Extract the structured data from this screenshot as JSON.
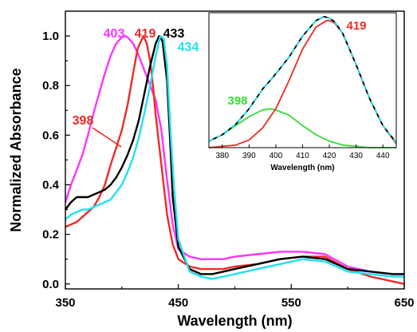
{
  "chart_data": [
    {
      "type": "line",
      "xlabel": "Wavelength (nm)",
      "ylabel": "Normalized Absorbance",
      "xlim": [
        350,
        650
      ],
      "ylim": [
        -0.02,
        1.1
      ],
      "xticks": [
        "350",
        "450",
        "550",
        "650"
      ],
      "xtick_values": [
        350,
        450,
        550,
        650
      ],
      "yticks": [
        "0.0",
        "0.2",
        "0.4",
        "0.6",
        "0.8",
        "1.0"
      ],
      "ytick_values": [
        0,
        0.2,
        0.4,
        0.6,
        0.8,
        1.0
      ],
      "series": [
        {
          "color": "#ff33ff",
          "x": [
            350,
            355,
            360,
            365,
            370,
            375,
            380,
            385,
            390,
            395,
            400,
            403,
            405,
            410,
            415,
            420,
            425,
            430,
            435,
            440,
            445,
            450,
            460,
            470,
            480,
            490,
            500,
            520,
            540,
            560,
            580,
            600,
            620,
            640,
            650
          ],
          "y": [
            0.33,
            0.4,
            0.46,
            0.52,
            0.6,
            0.69,
            0.77,
            0.85,
            0.92,
            0.97,
            0.995,
            1.0,
            0.995,
            0.97,
            0.92,
            0.86,
            0.8,
            0.74,
            0.62,
            0.42,
            0.24,
            0.14,
            0.11,
            0.1,
            0.1,
            0.1,
            0.11,
            0.12,
            0.13,
            0.13,
            0.12,
            0.07,
            0.05,
            0.04,
            0.04
          ]
        },
        {
          "color": "#ee2a24",
          "x": [
            350,
            355,
            360,
            365,
            370,
            375,
            380,
            385,
            390,
            395,
            400,
            405,
            410,
            414,
            419,
            422,
            425,
            428,
            430,
            435,
            440,
            445,
            450,
            460,
            470,
            480,
            490,
            500,
            520,
            540,
            560,
            580,
            600,
            620,
            640,
            650
          ],
          "y": [
            0.23,
            0.24,
            0.25,
            0.27,
            0.29,
            0.31,
            0.35,
            0.4,
            0.48,
            0.55,
            0.62,
            0.72,
            0.85,
            0.95,
            1.0,
            0.97,
            0.9,
            0.78,
            0.68,
            0.48,
            0.28,
            0.16,
            0.1,
            0.07,
            0.06,
            0.06,
            0.06,
            0.07,
            0.08,
            0.1,
            0.11,
            0.11,
            0.06,
            0.03,
            0.01,
            0.0
          ]
        },
        {
          "color": "#000000",
          "x": [
            350,
            355,
            360,
            365,
            370,
            375,
            380,
            385,
            390,
            395,
            400,
            405,
            410,
            415,
            420,
            425,
            430,
            433,
            436,
            440,
            443,
            445,
            450,
            460,
            470,
            480,
            490,
            500,
            520,
            540,
            560,
            580,
            600,
            620,
            640,
            650
          ],
          "y": [
            0.3,
            0.33,
            0.35,
            0.35,
            0.35,
            0.36,
            0.37,
            0.38,
            0.4,
            0.43,
            0.47,
            0.52,
            0.58,
            0.66,
            0.77,
            0.88,
            0.97,
            1.0,
            0.98,
            0.82,
            0.55,
            0.35,
            0.15,
            0.06,
            0.04,
            0.04,
            0.05,
            0.06,
            0.08,
            0.1,
            0.11,
            0.1,
            0.06,
            0.05,
            0.04,
            0.04
          ]
        },
        {
          "color": "#22e0ee",
          "x": [
            350,
            355,
            360,
            365,
            370,
            375,
            380,
            385,
            390,
            395,
            400,
            405,
            410,
            415,
            420,
            425,
            430,
            434,
            437,
            440,
            443,
            446,
            450,
            460,
            470,
            480,
            490,
            500,
            520,
            540,
            560,
            580,
            600,
            620,
            640,
            650
          ],
          "y": [
            0.26,
            0.28,
            0.29,
            0.3,
            0.3,
            0.31,
            0.32,
            0.33,
            0.34,
            0.37,
            0.4,
            0.45,
            0.51,
            0.59,
            0.69,
            0.8,
            0.92,
            1.0,
            0.99,
            0.88,
            0.62,
            0.4,
            0.18,
            0.05,
            0.03,
            0.02,
            0.03,
            0.04,
            0.06,
            0.08,
            0.1,
            0.09,
            0.05,
            0.04,
            0.03,
            0.03
          ]
        }
      ],
      "annotations": [
        {
          "text": "403",
          "color": "#ff33ff"
        },
        {
          "text": "419",
          "color": "#ee2a24"
        },
        {
          "text": "433",
          "color": "#000000"
        },
        {
          "text": "434",
          "color": "#22e0ee"
        },
        {
          "text": "398",
          "color": "#ee2a24"
        }
      ]
    },
    {
      "type": "line",
      "xlabel": "Wavelength (nm)",
      "ylabel": "",
      "xlim": [
        375,
        445
      ],
      "ylim": [
        0,
        1.04
      ],
      "xticks": [
        "380",
        "390",
        "400",
        "410",
        "420",
        "430",
        "440"
      ],
      "xtick_values": [
        380,
        390,
        400,
        410,
        420,
        430,
        440
      ],
      "series": [
        {
          "color": "#000000",
          "style": "solid",
          "x": [
            375,
            380,
            385,
            390,
            395,
            398,
            400,
            405,
            410,
            415,
            418,
            420,
            422,
            425,
            430,
            435,
            440,
            445
          ],
          "y": [
            0.05,
            0.1,
            0.18,
            0.3,
            0.45,
            0.52,
            0.57,
            0.7,
            0.86,
            0.98,
            1.01,
            1.0,
            0.97,
            0.88,
            0.64,
            0.38,
            0.17,
            0.04
          ]
        },
        {
          "color": "#22e0ee",
          "style": "dashed",
          "x": [
            375,
            380,
            385,
            390,
            395,
            398,
            400,
            405,
            410,
            415,
            418,
            420,
            422,
            425,
            430,
            435,
            440,
            445
          ],
          "y": [
            0.05,
            0.1,
            0.18,
            0.3,
            0.45,
            0.52,
            0.57,
            0.7,
            0.86,
            0.98,
            1.01,
            1.0,
            0.97,
            0.88,
            0.64,
            0.38,
            0.17,
            0.04
          ]
        },
        {
          "color": "#ee2a24",
          "style": "solid",
          "x": [
            375,
            380,
            385,
            390,
            395,
            400,
            405,
            410,
            415,
            419,
            420,
            422,
            425,
            430,
            435,
            440,
            445
          ],
          "y": [
            0.0,
            0.01,
            0.02,
            0.06,
            0.15,
            0.3,
            0.52,
            0.76,
            0.93,
            0.98,
            0.98,
            0.96,
            0.88,
            0.64,
            0.38,
            0.17,
            0.03
          ]
        },
        {
          "color": "#33dd33",
          "style": "solid",
          "x": [
            375,
            380,
            385,
            390,
            395,
            398,
            400,
            405,
            410,
            415,
            420,
            425,
            430,
            435,
            440,
            445
          ],
          "y": [
            0.05,
            0.1,
            0.17,
            0.24,
            0.29,
            0.3,
            0.29,
            0.25,
            0.17,
            0.1,
            0.05,
            0.02,
            0.01,
            0.0,
            0.0,
            0.0
          ]
        }
      ],
      "annotations": [
        {
          "text": "398",
          "color": "#33dd33"
        },
        {
          "text": "419",
          "color": "#ee2a24"
        }
      ]
    }
  ]
}
